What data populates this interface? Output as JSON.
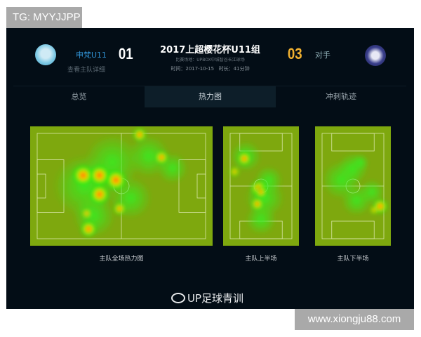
{
  "overlay_tag": "TG: MYYJJPP",
  "watermark": "www.xiongju88.com",
  "match": {
    "title": "2017上超樱花杯U11组",
    "venue": "比赛场地：UPBOX中城智谷长江球场",
    "time": "时间：2017-10-15   时长：41分钟",
    "home": {
      "name": "申梵U11",
      "detail_link": "查看主队详细",
      "score": "01",
      "color": "#2f8fd0",
      "logo_icon": "team-crest-icon"
    },
    "away": {
      "name": "对手",
      "score": "03",
      "score_color": "#f0b030",
      "logo_icon": "dragon-crest-icon"
    }
  },
  "tabs": [
    {
      "label": "总览"
    },
    {
      "label": "热力图",
      "active": true
    },
    {
      "label": "冲刺轨迹"
    }
  ],
  "heatmaps": [
    {
      "caption": "主队全场热力图"
    },
    {
      "caption": "主队上半场"
    },
    {
      "caption": "主队下半场"
    }
  ],
  "brand": {
    "icon": "weibo-icon",
    "name": "UP足球青训"
  }
}
